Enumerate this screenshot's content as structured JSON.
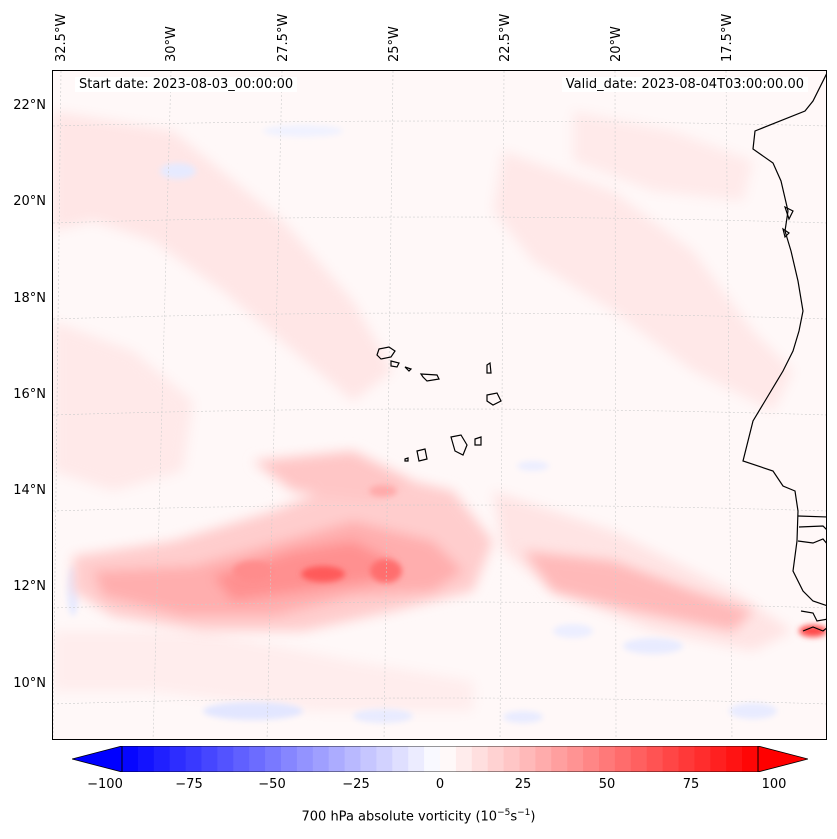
{
  "map": {
    "title_left": "Start date: 2023-08-03_00:00:00",
    "title_right": "Valid_date: 2023-08-04T03:00:00.00",
    "longitude_labels": [
      "32.5°W",
      "30°W",
      "27.5°W",
      "25°W",
      "22.5°W",
      "20°W",
      "17.5°W"
    ],
    "latitude_labels": [
      "22°N",
      "20°N",
      "18°N",
      "16°N",
      "14°N",
      "12°N",
      "10°N"
    ],
    "field": "700 hPa absolute vorticity",
    "colors": {
      "positive": "#ff0000",
      "negative": "#0000ff",
      "neutral": "#ffffff",
      "coast": "#000000"
    }
  },
  "colorbar": {
    "ticks": [
      "−100",
      "−75",
      "−50",
      "−25",
      "0",
      "25",
      "50",
      "75",
      "100"
    ],
    "label_main": "700 hPa absolute vorticity (10",
    "label_exp1": "−5",
    "label_mid": "s",
    "label_exp2": "−1",
    "label_end": ")"
  }
}
